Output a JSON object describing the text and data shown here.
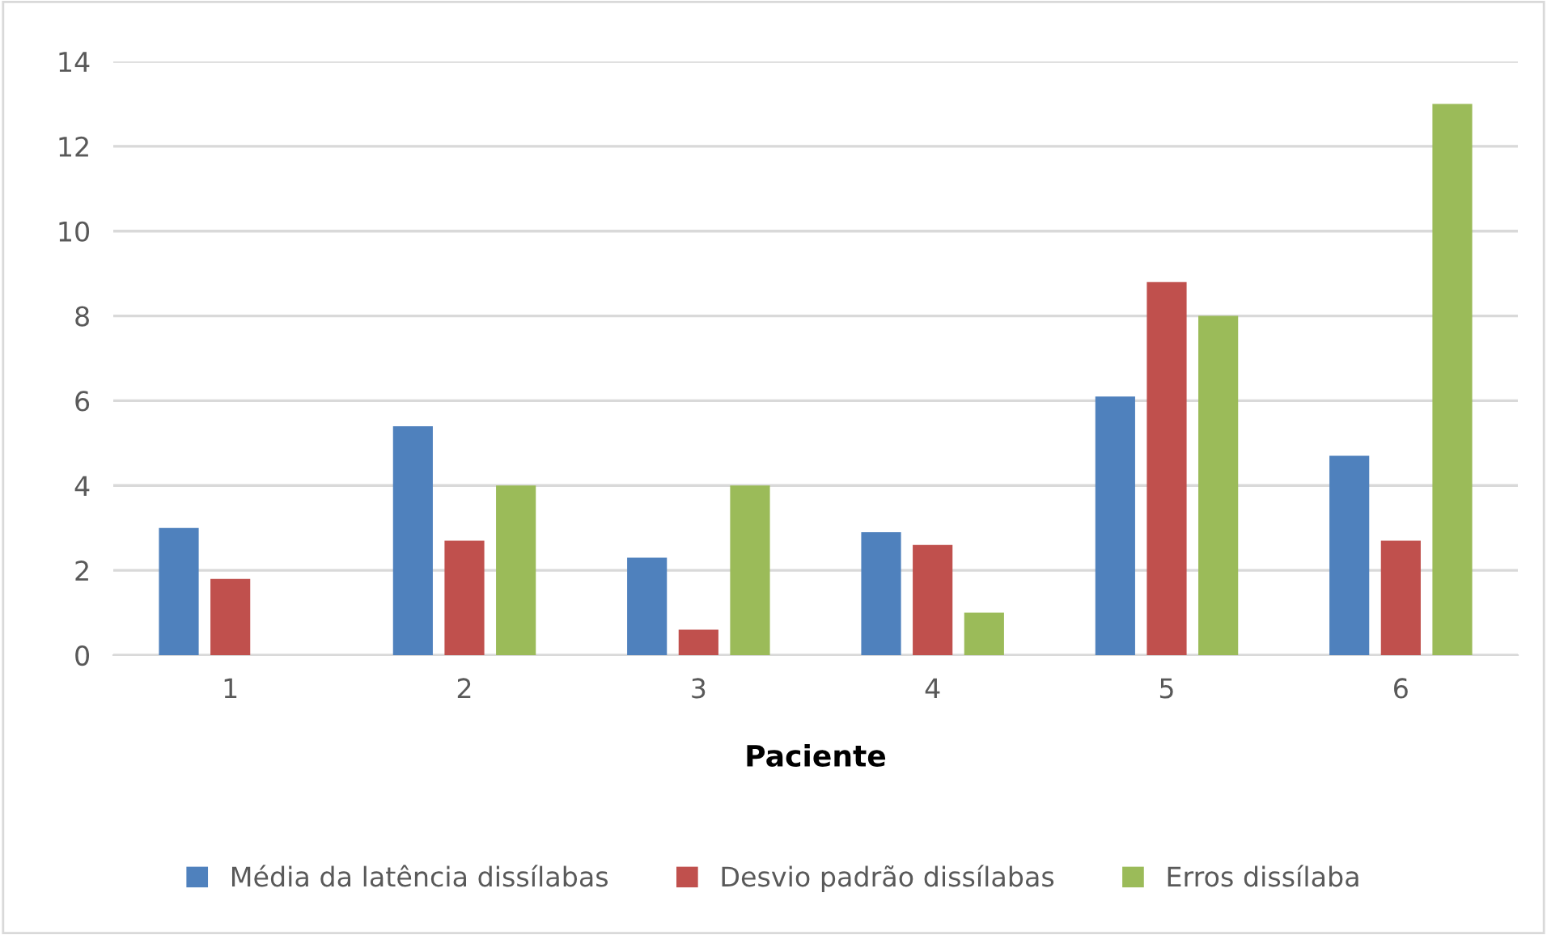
{
  "chart_data": {
    "type": "bar",
    "xlabel": "Paciente",
    "categories": [
      "1",
      "2",
      "3",
      "4",
      "5",
      "6"
    ],
    "series": [
      {
        "name": "Média da latência dissílabas",
        "color": "#4f81bd",
        "values": [
          3.0,
          5.4,
          2.3,
          2.9,
          6.1,
          4.7
        ]
      },
      {
        "name": "Desvio padrão dissílabas",
        "color": "#c0504d",
        "values": [
          1.8,
          2.7,
          0.6,
          2.6,
          8.8,
          2.7
        ]
      },
      {
        "name": "Erros dissílaba",
        "color": "#9bbb59",
        "values": [
          0,
          4,
          4,
          1,
          8,
          13
        ]
      }
    ],
    "ylim": [
      0,
      14
    ],
    "yticks": [
      0,
      2,
      4,
      6,
      8,
      10,
      12,
      14
    ],
    "grid": "y",
    "legend": "bottom"
  }
}
